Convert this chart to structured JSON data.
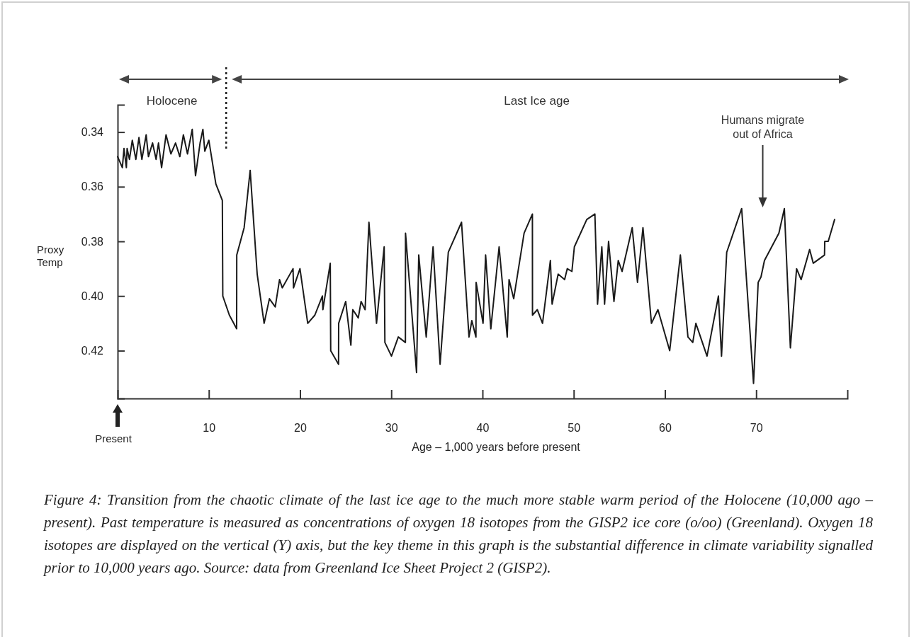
{
  "chart_data": {
    "type": "line",
    "xlabel": "Age  – 1,000 years before present",
    "ylabel": "Proxy Temp",
    "x": [
      0,
      0.52,
      0.7,
      0.96,
      1.04,
      1.3,
      1.61,
      2.0,
      2.34,
      2.66,
      3.13,
      3.38,
      3.83,
      4.22,
      4.48,
      4.82,
      5.31,
      5.84,
      6.35,
      6.82,
      7.21,
      7.66,
      8.18,
      8.54,
      9.04,
      9.35,
      9.56,
      10.0,
      10.77,
      11.48,
      11.53,
      12.25,
      13.05,
      13.06,
      13.87,
      14.53,
      15.3,
      16.06,
      16.64,
      17.28,
      17.75,
      18.05,
      19.23,
      19.28,
      19.99,
      20.84,
      21.62,
      22.45,
      22.5,
      23.31,
      23.36,
      24.22,
      24.23,
      25.0,
      25.57,
      25.78,
      26.38,
      26.69,
      27.13,
      27.55,
      28.38,
      29.22,
      29.3,
      30.02,
      30.77,
      31.55,
      31.56,
      32.77,
      33.01,
      33.83,
      34.58,
      35.35,
      36.25,
      37.7,
      38.52,
      38.83,
      39.28,
      39.3,
      40.06,
      40.34,
      40.91,
      41.82,
      42.71,
      42.91,
      43.42,
      44.56,
      45.47,
      45.48,
      46.01,
      46.58,
      47.44,
      47.63,
      48.29,
      49.0,
      49.29,
      49.8,
      50.07,
      51.43,
      52.32,
      52.61,
      53.08,
      53.38,
      53.82,
      54.41,
      54.88,
      55.3,
      56.41,
      56.99,
      57.59,
      58.52,
      59.23,
      60.52,
      61.69,
      62.52,
      63.05,
      63.39,
      64.61,
      65.86,
      66.2,
      66.77,
      68.41,
      69.71,
      70.22,
      70.53,
      70.91,
      72.49,
      73.09,
      73.75,
      74.43,
      74.93,
      75.86,
      76.26,
      77.49,
      77.52,
      77.9,
      78.6
    ],
    "series": [
      {
        "color": "#1a1a1a",
        "values": [
          0.349,
          0.353,
          0.346,
          0.353,
          0.346,
          0.35,
          0.343,
          0.35,
          0.342,
          0.35,
          0.341,
          0.349,
          0.344,
          0.35,
          0.344,
          0.353,
          0.341,
          0.348,
          0.344,
          0.349,
          0.341,
          0.348,
          0.339,
          0.356,
          0.344,
          0.339,
          0.347,
          0.343,
          0.359,
          0.365,
          0.4,
          0.407,
          0.412,
          0.385,
          0.375,
          0.354,
          0.392,
          0.41,
          0.401,
          0.404,
          0.394,
          0.397,
          0.39,
          0.397,
          0.39,
          0.41,
          0.407,
          0.4,
          0.405,
          0.388,
          0.42,
          0.425,
          0.41,
          0.402,
          0.418,
          0.405,
          0.408,
          0.402,
          0.405,
          0.373,
          0.41,
          0.382,
          0.417,
          0.422,
          0.415,
          0.417,
          0.377,
          0.428,
          0.385,
          0.415,
          0.382,
          0.425,
          0.384,
          0.373,
          0.415,
          0.409,
          0.415,
          0.395,
          0.41,
          0.385,
          0.412,
          0.382,
          0.415,
          0.394,
          0.401,
          0.377,
          0.37,
          0.407,
          0.405,
          0.41,
          0.387,
          0.403,
          0.392,
          0.394,
          0.39,
          0.391,
          0.382,
          0.372,
          0.37,
          0.403,
          0.382,
          0.403,
          0.38,
          0.402,
          0.387,
          0.391,
          0.375,
          0.395,
          0.375,
          0.41,
          0.405,
          0.42,
          0.385,
          0.415,
          0.417,
          0.41,
          0.422,
          0.4,
          0.422,
          0.384,
          0.368,
          0.432,
          0.395,
          0.393,
          0.387,
          0.377,
          0.368,
          0.419,
          0.39,
          0.394,
          0.383,
          0.388,
          0.385,
          0.38,
          0.38,
          0.372
        ]
      }
    ],
    "xlim": [
      0,
      80
    ],
    "xticks": [
      10,
      20,
      30,
      40,
      50,
      60,
      70
    ],
    "ylim": [
      0.4375,
      0.33
    ],
    "yticks": [
      0.34,
      0.36,
      0.38,
      {
        "value": 0.4,
        "label": "0.40"
      },
      0.42
    ],
    "grid": false,
    "marker": "none",
    "line_style": "solid",
    "ref_lines": [
      {
        "axis": "x",
        "value": 11.9,
        "line_style": "dotted",
        "color": "#222222"
      }
    ],
    "annotations": [
      "Holocene",
      "Last Ice age",
      "Humans migrate out of Africa",
      "Present",
      "Figure 4: Transition from the chaotic climate of the last ice age to the much more stable warm period of the Holocene (10,000 ago – present). Past temperature is measured as concentrations of oxygen 18 isotopes from the GISP2 ice core (o/oo) (Greenland). Oxygen 18 isotopes are displayed on the vertical (Y) axis, but the key theme in this graph is the substantial difference in climate variability signalled prior to 10,000 years ago. Source: data from Greenland Ice Sheet Project 2 (GISP2)."
    ]
  }
}
